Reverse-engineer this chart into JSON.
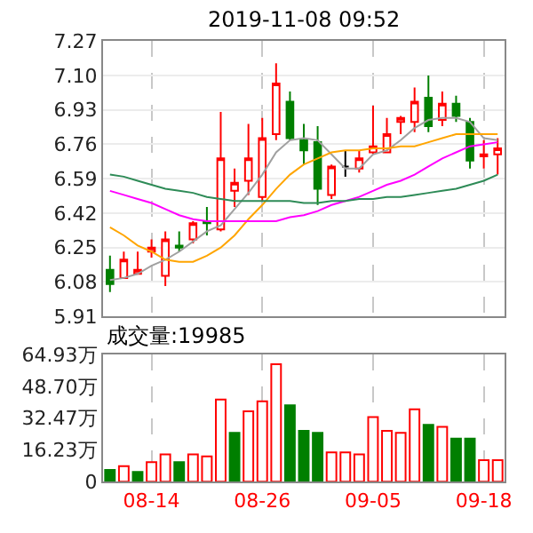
{
  "chart_data": [
    {
      "type": "candlestick",
      "title": "2019-11-08 09:52",
      "categories": [
        null,
        null,
        null,
        null,
        null,
        null,
        null,
        null,
        null,
        null,
        null,
        null,
        null,
        null,
        null,
        null,
        null,
        null,
        null,
        null,
        null,
        null,
        null,
        null,
        null,
        null,
        null,
        null,
        null
      ],
      "ohlc": [
        [
          6.14,
          6.21,
          6.03,
          6.07
        ],
        [
          6.1,
          6.23,
          6.1,
          6.19
        ],
        [
          6.12,
          6.23,
          6.12,
          6.14
        ],
        [
          6.23,
          6.29,
          6.2,
          6.25
        ],
        [
          6.11,
          6.33,
          6.06,
          6.29
        ],
        [
          6.26,
          6.33,
          6.23,
          6.25
        ],
        [
          6.29,
          6.38,
          6.27,
          6.37
        ],
        [
          6.38,
          6.45,
          6.31,
          6.37
        ],
        [
          6.34,
          6.92,
          6.33,
          6.69
        ],
        [
          6.53,
          6.64,
          6.45,
          6.57
        ],
        [
          6.58,
          6.86,
          6.51,
          6.69
        ],
        [
          6.5,
          6.89,
          6.48,
          6.79
        ],
        [
          6.81,
          7.16,
          6.78,
          7.06
        ],
        [
          6.97,
          7.02,
          6.78,
          6.79
        ],
        [
          6.78,
          6.86,
          6.66,
          6.73
        ],
        [
          6.77,
          6.85,
          6.46,
          6.54
        ],
        [
          6.51,
          6.66,
          6.49,
          6.65
        ],
        [
          6.65,
          6.73,
          6.6,
          6.65
        ],
        [
          6.64,
          6.73,
          6.62,
          6.69
        ],
        [
          6.72,
          6.95,
          6.71,
          6.75
        ],
        [
          6.72,
          6.89,
          6.72,
          6.81
        ],
        [
          6.87,
          6.9,
          6.81,
          6.89
        ],
        [
          6.87,
          7.04,
          6.82,
          6.97
        ],
        [
          6.99,
          7.1,
          6.82,
          6.85
        ],
        [
          6.88,
          7.02,
          6.85,
          6.96
        ],
        [
          6.96,
          7.0,
          6.87,
          6.9
        ],
        [
          6.87,
          6.89,
          6.64,
          6.68
        ],
        [
          6.7,
          6.78,
          6.64,
          6.71
        ],
        [
          6.71,
          6.79,
          6.61,
          6.74
        ]
      ],
      "colors": [
        "#007f00",
        "#ff0000",
        "#ff0000",
        "#ff0000",
        "#ff0000",
        "#007f00",
        "#ff0000",
        "#007f00",
        "#ff0000",
        "#ff0000",
        "#ff0000",
        "#ff0000",
        "#ff0000",
        "#007f00",
        "#007f00",
        "#007f00",
        "#ff0000",
        "#000000",
        "#ff0000",
        "#ff0000",
        "#ff0000",
        "#ff0000",
        "#ff0000",
        "#007f00",
        "#ff0000",
        "#007f00",
        "#007f00",
        "#ff0000",
        "#ff0000"
      ],
      "series": [
        {
          "type": "line",
          "color": "#a0a0a0",
          "values": [
            6.09,
            6.1,
            6.12,
            6.16,
            6.19,
            6.23,
            6.28,
            6.33,
            6.36,
            6.44,
            6.52,
            6.61,
            6.72,
            6.78,
            6.79,
            6.78,
            6.71,
            6.64,
            6.64,
            6.71,
            6.73,
            6.78,
            6.84,
            6.88,
            6.89,
            6.89,
            6.87,
            6.79,
            6.78
          ]
        },
        {
          "type": "line",
          "color": "#ffa500",
          "values": [
            6.35,
            6.31,
            6.26,
            6.23,
            6.19,
            6.18,
            6.18,
            6.21,
            6.25,
            6.31,
            6.39,
            6.46,
            6.54,
            6.61,
            6.66,
            6.69,
            6.72,
            6.73,
            6.73,
            6.74,
            6.74,
            6.75,
            6.75,
            6.77,
            6.79,
            6.81,
            6.81,
            6.81,
            6.81
          ]
        },
        {
          "type": "line",
          "color": "#ff00ff",
          "values": [
            6.53,
            6.51,
            6.49,
            6.47,
            6.44,
            6.41,
            6.39,
            6.38,
            6.38,
            6.38,
            6.38,
            6.38,
            6.38,
            6.4,
            6.41,
            6.43,
            6.46,
            6.48,
            6.5,
            6.53,
            6.56,
            6.58,
            6.61,
            6.65,
            6.69,
            6.72,
            6.75,
            6.76,
            6.77
          ]
        },
        {
          "type": "line",
          "color": "#2e8b57",
          "values": [
            6.61,
            6.6,
            6.58,
            6.56,
            6.54,
            6.53,
            6.52,
            6.5,
            6.49,
            6.48,
            6.48,
            6.48,
            6.48,
            6.48,
            6.47,
            6.47,
            6.48,
            6.48,
            6.49,
            6.49,
            6.5,
            6.5,
            6.51,
            6.52,
            6.53,
            6.54,
            6.56,
            6.58,
            6.61
          ]
        }
      ],
      "ylim": [
        5.91,
        7.27
      ],
      "yticks": [
        5.91,
        6.08,
        6.25,
        6.42,
        6.59,
        6.76,
        6.93,
        {
          "value": 7.1,
          "label": "7.10"
        },
        7.27
      ],
      "grid": true,
      "tick_labels": "y"
    },
    {
      "type": "bar",
      "categories": [
        null,
        null,
        null,
        "08-14",
        null,
        null,
        null,
        null,
        null,
        null,
        null,
        "08-26",
        null,
        null,
        null,
        null,
        null,
        null,
        null,
        "09-05",
        null,
        null,
        null,
        null,
        null,
        null,
        null,
        "09-18",
        null
      ],
      "values": [
        6,
        8,
        5,
        10,
        14,
        10,
        14,
        13,
        42,
        25,
        36,
        41,
        60,
        39,
        26,
        25,
        15,
        15,
        14,
        33,
        26,
        25,
        37,
        29,
        28,
        22,
        22,
        11,
        11
      ],
      "colors": [
        "#007f00",
        "#ff0000",
        "#007f00",
        "#ff0000",
        "#ff0000",
        "#007f00",
        "#ff0000",
        "#ff0000",
        "#ff0000",
        "#007f00",
        "#ff0000",
        "#ff0000",
        "#ff0000",
        "#007f00",
        "#007f00",
        "#007f00",
        "#ff0000",
        "#ff0000",
        "#ff0000",
        "#ff0000",
        "#ff0000",
        "#ff0000",
        "#ff0000",
        "#007f00",
        "#ff0000",
        "#007f00",
        "#007f00",
        "#ff0000",
        "#ff0000"
      ],
      "ylim": [
        0,
        64.93
      ],
      "yticks": [
        0,
        {
          "value": 16.23,
          "label": "16.23万"
        },
        {
          "value": 32.47,
          "label": "32.47万"
        },
        {
          "value": 48.7,
          "label": "48.70万"
        },
        {
          "value": 64.93,
          "label": "64.93万"
        }
      ],
      "annotations": [
        "成交量:19985"
      ],
      "grid": "x"
    }
  ]
}
